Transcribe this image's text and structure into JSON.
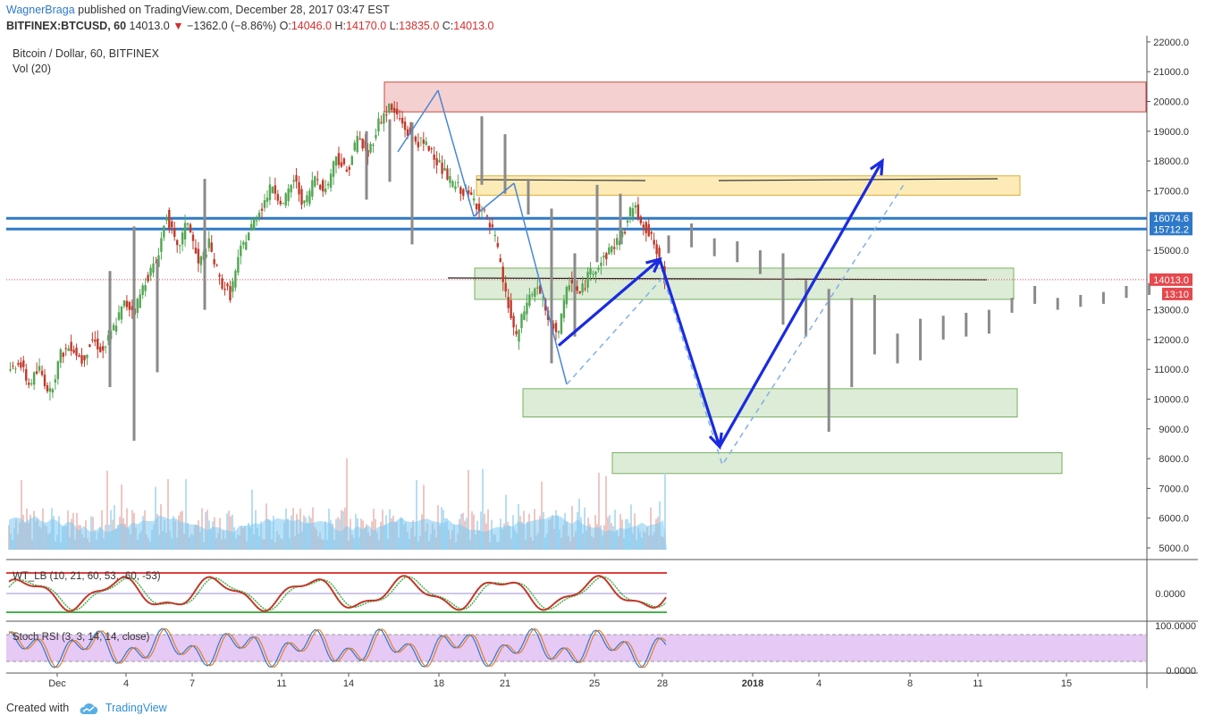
{
  "header": {
    "user": "WagnerBraga",
    "published": " published on TradingView.com, December 28, 2017 03:47 EST",
    "symbol": "BITFINEX:BTCUSD, 60",
    "last": "14013.0",
    "change": "−1362.0 (−8.86%)",
    "o_label": "O:",
    "o": "14046.0",
    "h_label": "H:",
    "h": "14170.0",
    "l_label": "L:",
    "l": "13835.0",
    "c_label": "C:",
    "c": "14013.0"
  },
  "chart_data": {
    "type": "candlestick",
    "title": "Bitcoin / Dollar, 60, BITFINEX",
    "volume_label": "Vol (20)",
    "x_ticks": [
      "Dec",
      "4",
      "7",
      "11",
      "14",
      "18",
      "21",
      "25",
      "28",
      "2018",
      "4",
      "8",
      "11",
      "15"
    ],
    "y_ticks": [
      "22000.0",
      "21000.0",
      "20000.0",
      "19000.0",
      "18000.0",
      "17000.0",
      "15000.0",
      "13000.0",
      "12000.0",
      "11000.0",
      "10000.0",
      "9000.0",
      "8000.0",
      "7000.0",
      "6000.0",
      "5000.0"
    ],
    "ylim": [
      4500,
      22200
    ],
    "price_path": [
      10800,
      11300,
      10500,
      11000,
      10200,
      11500,
      11800,
      11300,
      12000,
      11600,
      12400,
      13200,
      13000,
      14000,
      14600,
      16200,
      15000,
      16000,
      14500,
      15200,
      14000,
      13500,
      15000,
      15800,
      16500,
      17200,
      16500,
      17400,
      16500,
      17500,
      17000,
      18200,
      17600,
      18800,
      18200,
      19300,
      19800,
      19400,
      18800,
      18600,
      18400,
      17700,
      17200,
      17000,
      16700,
      16200,
      15400,
      13500,
      12000,
      13300,
      13800,
      12600,
      12300,
      14000,
      13500,
      14300,
      14600,
      15100,
      15500,
      16500,
      15900,
      15200,
      14013
    ],
    "forecast_bars": [
      [
        14900,
        15500
      ],
      [
        15100,
        15900
      ],
      [
        14800,
        15400
      ],
      [
        14600,
        15300
      ],
      [
        14200,
        15000
      ],
      [
        12500,
        14900
      ],
      [
        12100,
        14000
      ],
      [
        8900,
        13700
      ],
      [
        10400,
        13400
      ],
      [
        11500,
        13500
      ],
      [
        11200,
        12200
      ],
      [
        11300,
        12700
      ],
      [
        12000,
        12800
      ],
      [
        12100,
        12900
      ],
      [
        12200,
        13000
      ],
      [
        12900,
        13400
      ],
      [
        13200,
        13800
      ],
      [
        13000,
        13400
      ],
      [
        13100,
        13500
      ],
      [
        13200,
        13600
      ],
      [
        13400,
        13800
      ],
      [
        13500,
        13900
      ]
    ],
    "horizontal_levels": [
      {
        "label": "16074.6",
        "value": 16074.6,
        "color": "#2f79c9"
      },
      {
        "label": "15712.2",
        "value": 15712.2,
        "color": "#2f79c9"
      }
    ],
    "current_price": {
      "label": "14013.0",
      "value": 14013.0,
      "countdown": "13:10",
      "color": "#e5484d"
    },
    "zones": [
      {
        "kind": "resistance",
        "from": 19650,
        "to": 20650,
        "color": "#f4cccc"
      },
      {
        "kind": "resistance",
        "from": 16850,
        "to": 17500,
        "color": "#fde9b0"
      },
      {
        "kind": "support",
        "from": 13350,
        "to": 14400,
        "color": "#d9ead3"
      },
      {
        "kind": "support",
        "from": 9400,
        "to": 10350,
        "color": "#d9ead3"
      },
      {
        "kind": "support",
        "from": 7500,
        "to": 8200,
        "color": "#d9ead3"
      }
    ],
    "projection": [
      [
        11800,
        14700
      ],
      [
        14700,
        8400
      ],
      [
        8400,
        18000
      ]
    ],
    "indicators": [
      {
        "name": "WT_LB (10, 21, 60, 53, -60, -53)",
        "y_tick": "0.0000"
      },
      {
        "name": "Stoch RSI (3, 3, 14, 14, close)",
        "y_ticks": [
          "100.0000",
          "0.0000"
        ]
      }
    ]
  },
  "footer": {
    "created_with": "Created with",
    "brand": "TradingView"
  },
  "colors": {
    "up": "#53a653",
    "down": "#c0392b",
    "accent": "#2f79c9",
    "volume": "#7ec8f2"
  }
}
